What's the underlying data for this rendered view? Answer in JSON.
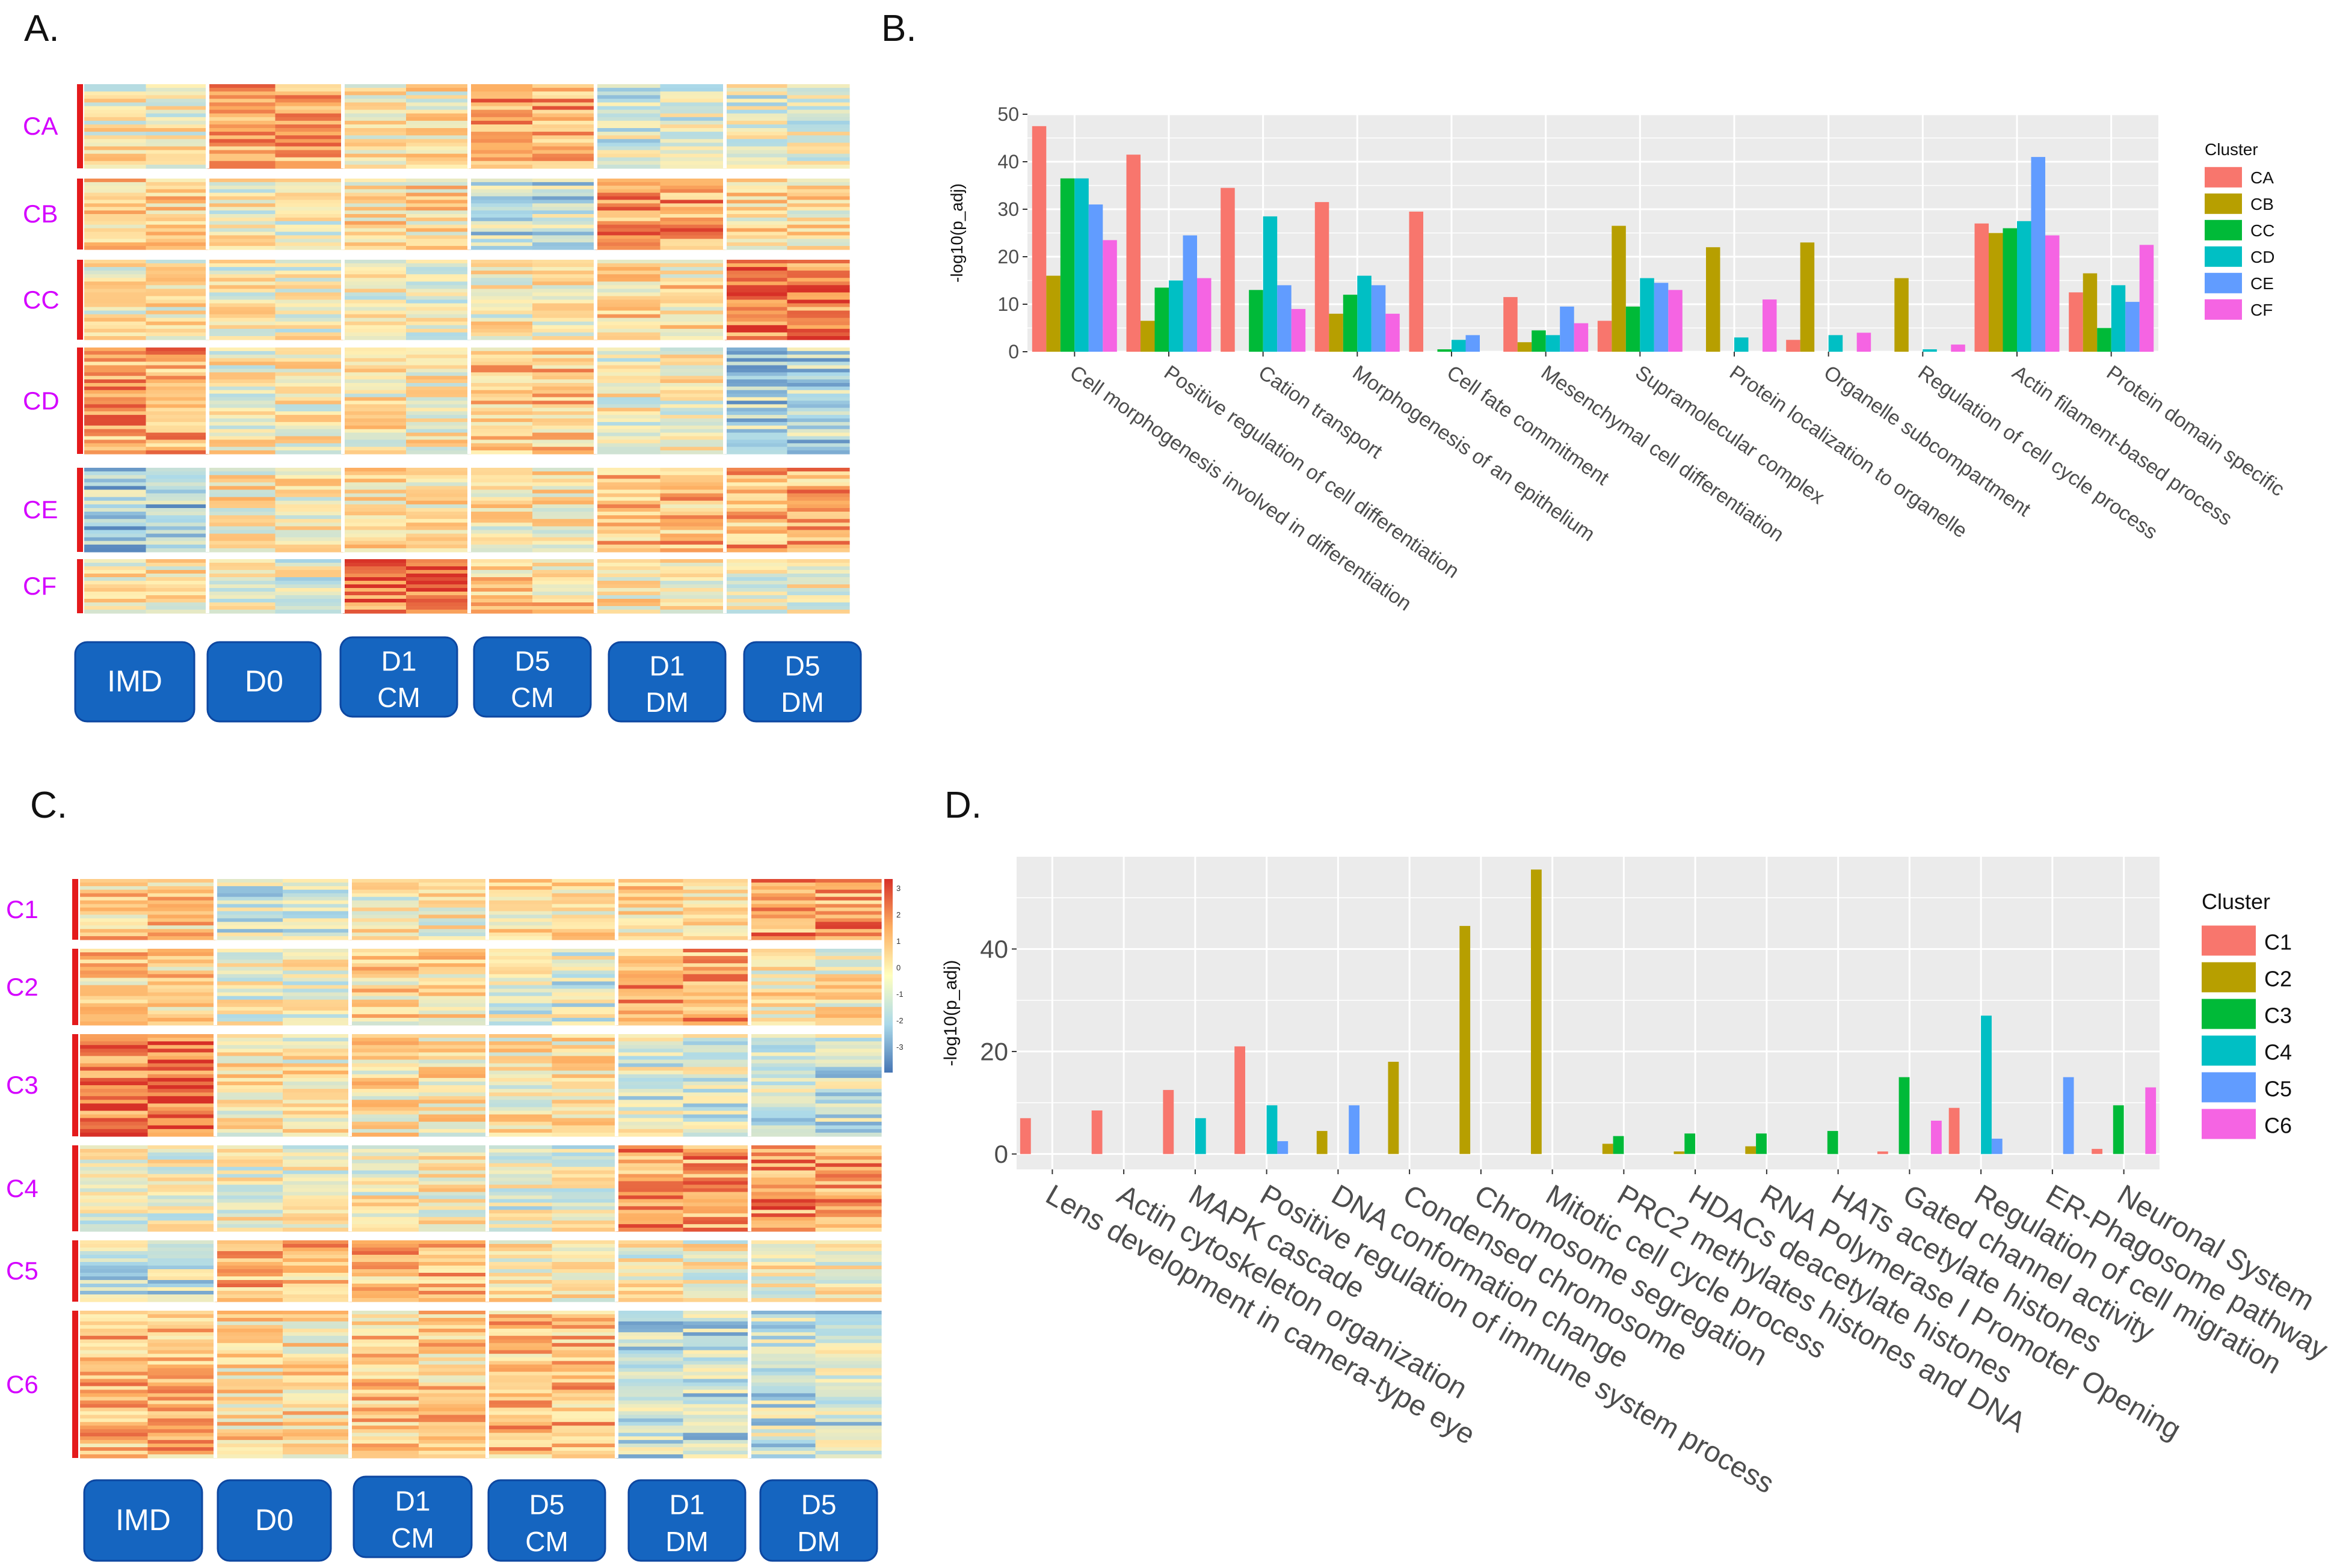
{
  "panels": {
    "A": {
      "letter": "A.",
      "clusters": [
        "CA",
        "CB",
        "CC",
        "CD",
        "CE",
        "CF"
      ],
      "conditions": [
        {
          "line1": "IMD",
          "line2": ""
        },
        {
          "line1": "D0",
          "line2": ""
        },
        {
          "line1": "D1",
          "line2": "CM"
        },
        {
          "line1": "D5",
          "line2": "CM"
        },
        {
          "line1": "D1",
          "line2": "DM"
        },
        {
          "line1": "D5",
          "line2": "DM"
        }
      ]
    },
    "C": {
      "letter": "C.",
      "clusters": [
        "C1",
        "C2",
        "C3",
        "C4",
        "C5",
        "C6"
      ],
      "conditions": [
        {
          "line1": "IMD",
          "line2": ""
        },
        {
          "line1": "D0",
          "line2": ""
        },
        {
          "line1": "D1",
          "line2": "CM"
        },
        {
          "line1": "D5",
          "line2": "CM"
        },
        {
          "line1": "D1",
          "line2": "DM"
        },
        {
          "line1": "D5",
          "line2": "DM"
        }
      ],
      "colorbar_ticks": [
        "3",
        "2",
        "1",
        "0",
        "-1",
        "-2",
        "-3"
      ]
    },
    "B": {
      "letter": "B."
    },
    "D": {
      "letter": "D."
    }
  },
  "chart_data": [
    {
      "type": "bar",
      "panel": "B",
      "title": "",
      "xlabel": "",
      "ylabel": "-log10(p_adj)",
      "ylim": [
        0,
        50
      ],
      "yticks": [
        "0",
        "10",
        "20",
        "30",
        "40",
        "50"
      ],
      "legend_title": "Cluster",
      "legend_position": "right",
      "categories": [
        "Cell morphogenesis involved in differentiation",
        "Positive regulation of cell differentiation",
        "Cation transport",
        "Morphogenesis of an epithelium",
        "Cell fate commitment",
        "Mesenchymal cell differentiation",
        "Supramolecular complex",
        "Protein localization to organelle",
        "Organelle subcompartment",
        "Regulation of cell cycle process",
        "Actin filament-based process",
        "Protein domain specific"
      ],
      "series": [
        {
          "name": "CA",
          "color": "#F8766D",
          "values": [
            47.5,
            41.5,
            34.5,
            31.5,
            29.5,
            11.5,
            6.5,
            0,
            2.5,
            0,
            27,
            12.5
          ]
        },
        {
          "name": "CB",
          "color": "#B79F00",
          "values": [
            16,
            6.5,
            0,
            8,
            0,
            2,
            26.5,
            22,
            23,
            15.5,
            25,
            16.5
          ]
        },
        {
          "name": "CC",
          "color": "#00BA38",
          "values": [
            36.5,
            13.5,
            13,
            12,
            0.5,
            4.5,
            9.5,
            0,
            0,
            0,
            26,
            5
          ]
        },
        {
          "name": "CD",
          "color": "#00BFC4",
          "values": [
            36.5,
            15,
            28.5,
            16,
            2.5,
            3.5,
            15.5,
            3,
            3.5,
            0.5,
            27.5,
            14
          ]
        },
        {
          "name": "CE",
          "color": "#619CFF",
          "values": [
            31,
            24.5,
            14,
            14,
            3.5,
            9.5,
            14.5,
            0,
            0,
            0,
            41,
            10.5
          ]
        },
        {
          "name": "CF",
          "color": "#F564E3",
          "values": [
            23.5,
            15.5,
            9,
            8,
            0,
            6,
            13,
            11,
            4,
            1.5,
            24.5,
            22.5
          ]
        }
      ]
    },
    {
      "type": "bar",
      "panel": "D",
      "title": "",
      "xlabel": "",
      "ylabel": "-log10(p_adj)",
      "ylim": [
        -3,
        58
      ],
      "yticks": [
        "0",
        "20",
        "40"
      ],
      "legend_title": "Cluster",
      "legend_position": "right",
      "categories": [
        "Lens development in camera-type eye",
        "Actin cytoskeleton organization",
        "MAPK cascade",
        "Positive regulation of immune system process",
        "DNA conformation change",
        "Condensed chromosome",
        "Chromosome segregation",
        "Mitotic cell cycle process",
        "PRC2 methylates histones and DNA",
        "HDACs deacetylate histones",
        "RNA Polymerase I Promoter Opening",
        "HATs acetylate histones",
        "Gated channel activity",
        "Regulation of cell migration",
        "ER-Phagosome pathway",
        "Neuronal System"
      ],
      "series": [
        {
          "name": "C1",
          "color": "#F8766D",
          "values": [
            7,
            8.5,
            12.5,
            21,
            0,
            0,
            0,
            0,
            0,
            0,
            0,
            0,
            0.5,
            9,
            0,
            1
          ]
        },
        {
          "name": "C2",
          "color": "#B79F00",
          "values": [
            0,
            0,
            0,
            0,
            4.5,
            18,
            44.5,
            55.5,
            2,
            0.5,
            1.5,
            0,
            0,
            0,
            0,
            0
          ]
        },
        {
          "name": "C3",
          "color": "#00BA38",
          "values": [
            0,
            0,
            0,
            0,
            0,
            0,
            0,
            0,
            3.5,
            4,
            4,
            4.5,
            15,
            0,
            0,
            9.5
          ]
        },
        {
          "name": "C4",
          "color": "#00BFC4",
          "values": [
            0,
            0,
            7,
            9.5,
            0,
            0,
            0,
            0,
            0,
            0,
            0,
            0,
            0,
            27,
            0,
            0
          ]
        },
        {
          "name": "C5",
          "color": "#619CFF",
          "values": [
            0,
            0,
            0,
            2.5,
            9.5,
            0,
            0,
            0,
            0,
            0,
            0,
            0,
            0,
            3,
            15,
            0
          ]
        },
        {
          "name": "C6",
          "color": "#F564E3",
          "values": [
            0,
            0,
            0,
            0,
            0,
            0,
            0,
            0,
            0,
            0,
            0,
            0,
            6.5,
            0,
            0,
            13
          ]
        }
      ]
    }
  ]
}
